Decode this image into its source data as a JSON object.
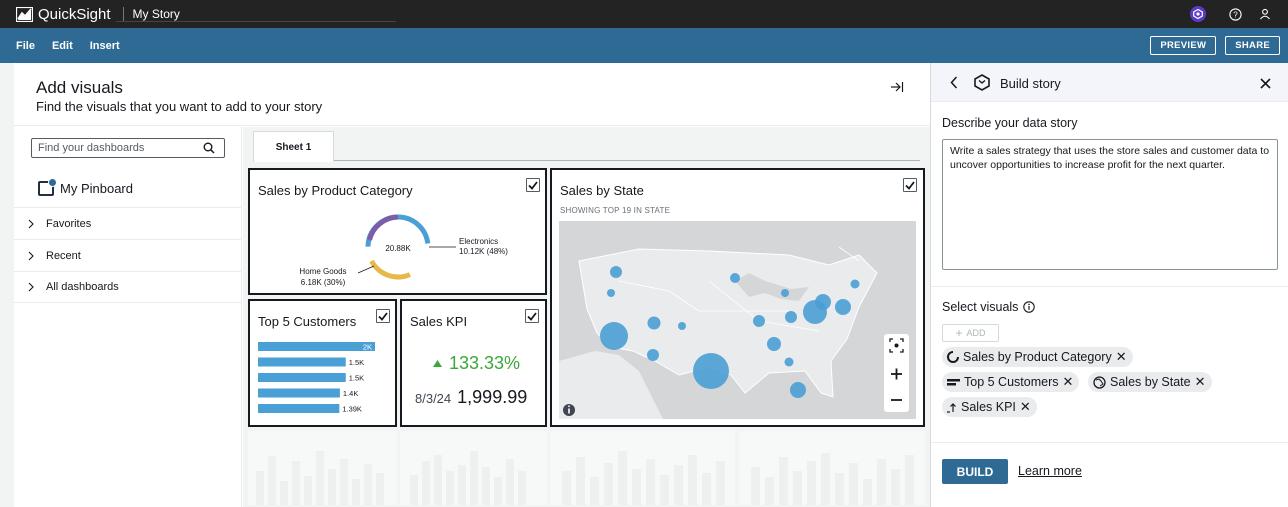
{
  "app": {
    "name": "QuickSight",
    "document_title": "My Story"
  },
  "menu": {
    "file": "File",
    "edit": "Edit",
    "insert": "Insert",
    "preview": "PREVIEW",
    "share": "SHARE"
  },
  "add_visuals": {
    "title": "Add visuals",
    "subtitle": "Find the visuals that you want to add to your story",
    "search_placeholder": "Find your dashboards",
    "pinboard": "My Pinboard",
    "nav": [
      "Favorites",
      "Recent",
      "All dashboards"
    ],
    "tab": "Sheet 1"
  },
  "visuals": {
    "category": {
      "title": "Sales by Product Category",
      "center": "20.88K",
      "electronics_label": "Electronics",
      "electronics_value": "10.12K (48%)",
      "homegoods_label": "Home Goods",
      "homegoods_value": "6.18K (30%)"
    },
    "state": {
      "title": "Sales by State",
      "subtitle": "SHOWING TOP 19 IN STATE"
    },
    "customers": {
      "title": "Top 5 Customers",
      "bars": [
        {
          "label": "2K",
          "fraction": 1.0
        },
        {
          "label": "1.5K",
          "fraction": 0.75
        },
        {
          "label": "1.5K",
          "fraction": 0.75
        },
        {
          "label": "1.4K",
          "fraction": 0.7
        },
        {
          "label": "1.39K",
          "fraction": 0.695
        }
      ]
    },
    "kpi": {
      "title": "Sales KPI",
      "change": "133.33%",
      "date": "8/3/24",
      "value": "1,999.99"
    }
  },
  "story": {
    "title": "Build story",
    "describe_label": "Describe your data story",
    "describe_text": "Write a sales strategy that uses the store sales and customer data to uncover opportunities to increase profit for the next quarter.",
    "select_label": "Select visuals",
    "add_label": "ADD",
    "chips": [
      "Sales by Product Category",
      "Top 5 Customers",
      "Sales by State",
      "Sales KPI"
    ],
    "build": "BUILD",
    "learn_more": "Learn more"
  },
  "colors": {
    "accent": "#2e6a94",
    "bar": "#4a9fd5",
    "kpi_up": "#3aa83a",
    "donut_purple": "#7b5ea7",
    "donut_yellow": "#e8b84a"
  }
}
